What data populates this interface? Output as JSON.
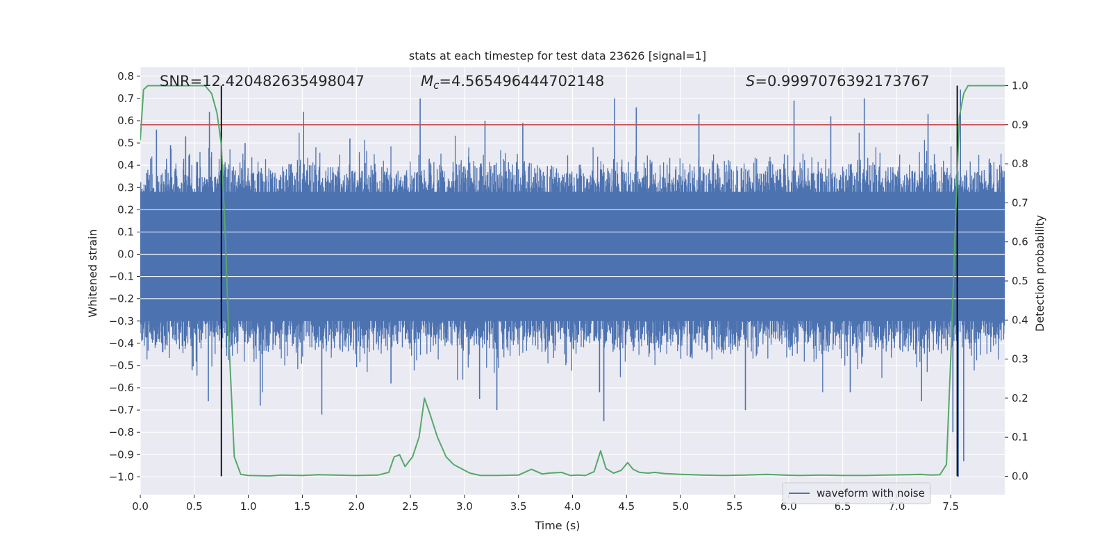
{
  "chart_data": {
    "type": "line",
    "title": "stats at each timestep for test data 23626 [signal=1]",
    "xlabel": "Time (s)",
    "ylabel": "Whitened strain",
    "ylabel_right": "Detection probability",
    "xlim": [
      0.0,
      8.0
    ],
    "ylim": [
      -1.08,
      0.84
    ],
    "ylim_right": [
      -0.047,
      1.047
    ],
    "x_ticks": [
      0.0,
      0.5,
      1.0,
      1.5,
      2.0,
      2.5,
      3.0,
      3.5,
      4.0,
      4.5,
      5.0,
      5.5,
      6.0,
      6.5,
      7.0,
      7.5
    ],
    "x_tick_labels": [
      "0.0",
      "0.5",
      "1.0",
      "1.5",
      "2.0",
      "2.5",
      "3.0",
      "3.5",
      "4.0",
      "4.5",
      "5.0",
      "5.5",
      "6.0",
      "6.5",
      "7.0",
      "7.5"
    ],
    "y_ticks": [
      0.8,
      0.7,
      0.6,
      0.5,
      0.4,
      0.3,
      0.2,
      0.1,
      0.0,
      -0.1,
      -0.2,
      -0.3,
      -0.4,
      -0.5,
      -0.6,
      -0.7,
      -0.8,
      -0.9,
      -1.0
    ],
    "y_tick_labels": [
      "0.8",
      "0.7",
      "0.6",
      "0.5",
      "0.4",
      "0.3",
      "0.2",
      "0.1",
      "0.0",
      "−0.1",
      "−0.2",
      "−0.3",
      "−0.4",
      "−0.5",
      "−0.6",
      "−0.7",
      "−0.8",
      "−0.9",
      "−1.0"
    ],
    "y_right_ticks": [
      0.0,
      0.1,
      0.2,
      0.3,
      0.4,
      0.5,
      0.6,
      0.7,
      0.8,
      0.9,
      1.0
    ],
    "y_right_tick_labels": [
      "0.0",
      "0.1",
      "0.2",
      "0.3",
      "0.4",
      "0.5",
      "0.6",
      "0.7",
      "0.8",
      "0.9",
      "1.0"
    ],
    "annotations": {
      "snr": "SNR=12.420482635498047",
      "mc_symbol": "M",
      "mc_sub": "c",
      "mc_value": "=4.565496444702148",
      "s_symbol": "S",
      "s_value": "=0.9997076392173767"
    },
    "threshold": {
      "value": 0.9,
      "axis": "right",
      "color": "#c44e52"
    },
    "detection_bounds": [
      0.75,
      7.56
    ],
    "waveform": {
      "name": "waveform with noise",
      "color": "#4c72b0",
      "core_band": [
        -0.3,
        0.28
      ],
      "sample_rate": 400,
      "spikes": [
        [
          0.15,
          0.56
        ],
        [
          0.28,
          0.49
        ],
        [
          0.42,
          0.53
        ],
        [
          0.64,
          0.64
        ],
        [
          0.97,
          0.5
        ],
        [
          1.51,
          0.64
        ],
        [
          1.94,
          0.52
        ],
        [
          2.59,
          0.7
        ],
        [
          3.19,
          0.6
        ],
        [
          3.54,
          0.59
        ],
        [
          4.39,
          0.7
        ],
        [
          4.59,
          0.66
        ],
        [
          5.17,
          0.63
        ],
        [
          6.05,
          0.69
        ],
        [
          6.39,
          0.62
        ],
        [
          6.7,
          0.7
        ],
        [
          7.29,
          0.63
        ],
        [
          7.59,
          0.74
        ],
        [
          0.48,
          -0.52
        ],
        [
          0.63,
          -0.66
        ],
        [
          1.11,
          -0.68
        ],
        [
          1.68,
          -0.72
        ],
        [
          2.32,
          -0.58
        ],
        [
          3.14,
          -0.65
        ],
        [
          3.3,
          -0.7
        ],
        [
          4.29,
          -0.75
        ],
        [
          4.25,
          -0.62
        ],
        [
          5.6,
          -0.7
        ],
        [
          6.57,
          -0.62
        ],
        [
          7.23,
          -0.66
        ],
        [
          7.52,
          -0.8
        ],
        [
          7.57,
          -1.0
        ],
        [
          7.62,
          -0.93
        ]
      ]
    },
    "probability": {
      "color": "#55a868",
      "x": [
        0.0,
        0.03,
        0.07,
        0.12,
        0.2,
        0.3,
        0.4,
        0.5,
        0.6,
        0.66,
        0.71,
        0.75,
        0.79,
        0.82,
        0.87,
        0.93,
        1.0,
        1.2,
        1.3,
        1.5,
        1.65,
        1.8,
        2.0,
        2.2,
        2.3,
        2.35,
        2.4,
        2.45,
        2.52,
        2.58,
        2.63,
        2.68,
        2.75,
        2.83,
        2.9,
        3.05,
        3.15,
        3.3,
        3.5,
        3.62,
        3.72,
        3.78,
        3.9,
        3.98,
        4.05,
        4.12,
        4.2,
        4.26,
        4.31,
        4.38,
        4.45,
        4.51,
        4.56,
        4.62,
        4.7,
        4.76,
        4.85,
        5.0,
        5.2,
        5.4,
        5.6,
        5.8,
        5.95,
        6.1,
        6.3,
        6.5,
        6.7,
        6.9,
        7.1,
        7.22,
        7.32,
        7.4,
        7.46,
        7.5,
        7.54,
        7.58,
        7.62,
        7.66,
        7.72,
        7.8,
        7.9,
        8.0
      ],
      "values": [
        0.86,
        0.99,
        1.0,
        1.0,
        1.0,
        1.0,
        1.0,
        1.0,
        1.0,
        0.98,
        0.93,
        0.85,
        0.6,
        0.35,
        0.05,
        0.005,
        0.002,
        0.001,
        0.003,
        0.002,
        0.004,
        0.003,
        0.002,
        0.003,
        0.01,
        0.05,
        0.055,
        0.025,
        0.05,
        0.1,
        0.2,
        0.16,
        0.1,
        0.05,
        0.03,
        0.008,
        0.002,
        0.002,
        0.003,
        0.018,
        0.006,
        0.008,
        0.01,
        0.002,
        0.003,
        0.002,
        0.012,
        0.065,
        0.02,
        0.008,
        0.015,
        0.035,
        0.018,
        0.01,
        0.008,
        0.01,
        0.007,
        0.005,
        0.003,
        0.002,
        0.003,
        0.005,
        0.003,
        0.002,
        0.003,
        0.002,
        0.002,
        0.003,
        0.004,
        0.005,
        0.003,
        0.004,
        0.03,
        0.3,
        0.62,
        0.92,
        0.98,
        1.0,
        1.0,
        1.0,
        1.0,
        1.0
      ]
    },
    "legend": {
      "entries": [
        "waveform with noise"
      ],
      "placement": "lower-right"
    }
  }
}
